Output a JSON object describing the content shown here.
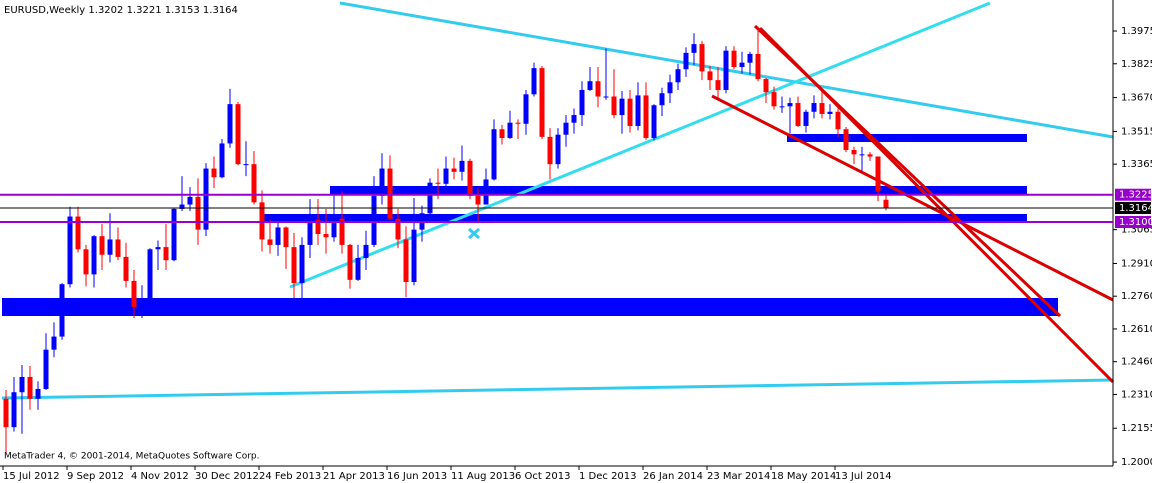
{
  "chart_data": {
    "type": "candlestick",
    "title": "EURUSD,Weekly  1.3202 1.3221 1.3153 1.3164",
    "footer": "MetaTrader 4, © 2001-2014, MetaQuotes Software Corp.",
    "up_color": "#0000ff",
    "down_color": "#ff0000",
    "ylim": [
      1.1982,
      1.4108
    ],
    "yticks": [
      1.3975,
      1.3825,
      {
        "value": 1.367,
        "label": "1.3670"
      },
      1.3515,
      1.3365,
      1.3065,
      {
        "value": 1.291,
        "label": "1.2910"
      },
      {
        "value": 1.276,
        "label": "1.2760"
      },
      {
        "value": 1.261,
        "label": "1.2610"
      },
      {
        "value": 1.246,
        "label": "1.2460"
      },
      {
        "value": 1.231,
        "label": "1.2310"
      },
      1.2155,
      {
        "value": 1.2,
        "label": "1.2000"
      }
    ],
    "price_levels": [
      {
        "value": 1.3225,
        "color": "#9900cc"
      },
      {
        "value": 1.3164,
        "color": "#000000"
      },
      {
        "value": 1.31,
        "label": "1.3100",
        "color": "#9900cc"
      }
    ],
    "categories": [
      "15 Jul 2012",
      null,
      null,
      null,
      null,
      null,
      null,
      null,
      "9 Sep 2012",
      null,
      null,
      null,
      null,
      null,
      null,
      null,
      "4 Nov 2012",
      null,
      null,
      null,
      null,
      null,
      null,
      null,
      "30 Dec 2012",
      null,
      null,
      null,
      null,
      null,
      null,
      null,
      "24 Feb 2013",
      null,
      null,
      null,
      null,
      null,
      null,
      null,
      "21 Apr 2013",
      null,
      null,
      null,
      null,
      null,
      null,
      null,
      "16 Jun 2013",
      null,
      null,
      null,
      null,
      null,
      null,
      null,
      "11 Aug 2013",
      null,
      null,
      null,
      null,
      null,
      null,
      null,
      "6 Oct 2013",
      null,
      null,
      null,
      null,
      null,
      null,
      null,
      "1 Dec 2013",
      null,
      null,
      null,
      null,
      null,
      null,
      null,
      "26 Jan 2014",
      null,
      null,
      null,
      null,
      null,
      null,
      null,
      "23 Mar 2014",
      null,
      null,
      null,
      null,
      null,
      null,
      null,
      "18 May 2014",
      null,
      null,
      null,
      null,
      null,
      null,
      null,
      "13 Jul 2014",
      null,
      null,
      null,
      null,
      null,
      null
    ],
    "open": [
      1.229,
      1.216,
      1.232,
      1.239,
      1.229,
      1.2335,
      1.2515,
      1.2575,
      1.2815,
      1.3125,
      1.2975,
      1.286,
      1.3035,
      1.295,
      1.302,
      1.294,
      1.283,
      1.271,
      1.2745,
      1.2975,
      1.2985,
      1.2925,
      1.316,
      1.318,
      1.3215,
      1.3065,
      1.3345,
      1.3305,
      1.346,
      1.364,
      1.3365,
      1.3365,
      1.319,
      1.302,
      1.2995,
      1.3075,
      1.2985,
      1.282,
      1.2995,
      1.311,
      1.3045,
      1.303,
      1.3115,
      1.2995,
      1.2835,
      1.2935,
      1.2995,
      1.322,
      1.3345,
      1.3115,
      1.302,
      1.2825,
      1.3065,
      1.314,
      1.328,
      1.3275,
      1.3345,
      1.333,
      1.338,
      1.322,
      1.318,
      1.3295,
      1.3525,
      1.3485,
      1.3555,
      1.355,
      1.3685,
      1.3805,
      1.349,
      1.3365,
      1.35,
      1.3555,
      1.359,
      1.3705,
      1.3745,
      1.3675,
      1.3675,
      1.359,
      1.3665,
      1.354,
      1.368,
      1.3485,
      1.3635,
      1.369,
      1.374,
      1.38,
      1.3875,
      1.3915,
      1.379,
      1.375,
      1.3705,
      1.3885,
      1.381,
      1.383,
      1.387,
      1.3755,
      1.3695,
      1.363,
      1.363,
      1.3645,
      1.354,
      1.3605,
      1.3645,
      1.3595,
      1.3605,
      1.3525,
      1.343,
      1.341,
      1.341,
      1.34,
      1.3202
    ],
    "high": [
      1.233,
      1.239,
      1.2445,
      1.244,
      1.237,
      1.259,
      1.264,
      1.282,
      1.317,
      1.317,
      1.2995,
      1.304,
      1.309,
      1.314,
      1.3075,
      1.3005,
      1.288,
      1.281,
      1.298,
      1.3015,
      1.309,
      1.3165,
      1.331,
      1.326,
      1.33,
      1.337,
      1.34,
      1.348,
      1.371,
      1.365,
      1.347,
      1.3425,
      1.3245,
      1.311,
      1.3125,
      1.308,
      1.305,
      1.303,
      1.3205,
      1.3205,
      1.316,
      1.324,
      1.324,
      1.3,
      1.2995,
      1.306,
      1.331,
      1.3415,
      1.3405,
      1.316,
      1.308,
      1.321,
      1.3175,
      1.33,
      1.3345,
      1.34,
      1.3395,
      1.345,
      1.339,
      1.3255,
      1.3345,
      1.357,
      1.3545,
      1.361,
      1.357,
      1.3705,
      1.383,
      1.3815,
      1.353,
      1.353,
      1.359,
      1.362,
      1.3745,
      1.381,
      1.381,
      1.3895,
      1.38,
      1.37,
      1.3705,
      1.374,
      1.374,
      1.364,
      1.3715,
      1.3775,
      1.3825,
      1.39,
      1.3965,
      1.393,
      1.3815,
      1.381,
      1.3905,
      1.3905,
      1.388,
      1.388,
      1.3995,
      1.376,
      1.372,
      1.3675,
      1.367,
      1.3675,
      1.3615,
      1.368,
      1.37,
      1.364,
      1.362,
      1.3535,
      1.3445,
      1.3445,
      1.342,
      1.34,
      1.3221
    ],
    "low": [
      1.2045,
      1.214,
      1.213,
      1.224,
      1.224,
      1.233,
      1.248,
      1.256,
      1.28,
      1.296,
      1.2805,
      1.28,
      1.288,
      1.2915,
      1.2925,
      1.28,
      1.266,
      1.266,
      1.273,
      1.288,
      1.288,
      1.292,
      1.315,
      1.315,
      1.2995,
      1.3035,
      1.3255,
      1.33,
      1.344,
      1.336,
      1.331,
      1.318,
      1.2965,
      1.2955,
      1.2945,
      1.2885,
      1.275,
      1.2745,
      1.2935,
      1.2995,
      1.2955,
      1.301,
      1.2955,
      1.2795,
      1.283,
      1.288,
      1.2985,
      1.318,
      1.311,
      1.298,
      1.2755,
      1.281,
      1.301,
      1.311,
      1.3205,
      1.3225,
      1.3295,
      1.329,
      1.3205,
      1.3105,
      1.318,
      1.329,
      1.3455,
      1.348,
      1.348,
      1.35,
      1.3675,
      1.348,
      1.3295,
      1.3345,
      1.3445,
      1.3505,
      1.354,
      1.37,
      1.3625,
      1.366,
      1.3575,
      1.3505,
      1.351,
      1.352,
      1.3475,
      1.3475,
      1.3585,
      1.3645,
      1.3705,
      1.3765,
      1.382,
      1.375,
      1.3705,
      1.367,
      1.369,
      1.38,
      1.378,
      1.3775,
      1.3745,
      1.3645,
      1.3615,
      1.36,
      1.3505,
      1.3535,
      1.351,
      1.3575,
      1.3575,
      1.357,
      1.349,
      1.342,
      1.3365,
      1.3335,
      1.338,
      1.3195,
      1.3153
    ],
    "close": [
      1.216,
      1.232,
      1.239,
      1.229,
      1.2335,
      1.2515,
      1.2575,
      1.2815,
      1.3125,
      1.2975,
      1.286,
      1.3035,
      1.295,
      1.302,
      1.294,
      1.283,
      1.271,
      1.2745,
      1.2975,
      1.2985,
      1.2925,
      1.316,
      1.318,
      1.3215,
      1.3065,
      1.3345,
      1.3305,
      1.346,
      1.364,
      1.3365,
      1.3365,
      1.319,
      1.302,
      1.2995,
      1.3075,
      1.2985,
      1.282,
      1.2995,
      1.311,
      1.3045,
      1.303,
      1.3115,
      1.2995,
      1.2835,
      1.2935,
      1.2995,
      1.322,
      1.3345,
      1.3115,
      1.302,
      1.2825,
      1.3065,
      1.314,
      1.328,
      1.3275,
      1.3345,
      1.333,
      1.338,
      1.322,
      1.318,
      1.3295,
      1.3525,
      1.3485,
      1.3555,
      1.355,
      1.3685,
      1.3805,
      1.349,
      1.3365,
      1.35,
      1.3555,
      1.359,
      1.3705,
      1.3745,
      1.3675,
      1.3675,
      1.359,
      1.3665,
      1.354,
      1.368,
      1.3485,
      1.3635,
      1.369,
      1.374,
      1.38,
      1.3875,
      1.3915,
      1.379,
      1.375,
      1.3705,
      1.3885,
      1.381,
      1.383,
      1.387,
      1.3755,
      1.3695,
      1.363,
      1.363,
      1.3645,
      1.354,
      1.3605,
      1.3645,
      1.3595,
      1.3605,
      1.3525,
      1.343,
      1.341,
      1.341,
      1.34,
      1.324,
      1.3164
    ]
  }
}
